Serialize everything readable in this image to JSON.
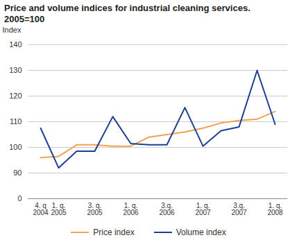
{
  "chart_data": {
    "type": "line",
    "title": "Price and volume indices for industrial cleaning services.",
    "subtitle": "2005=100",
    "y_label": "Index",
    "categories": [
      "4. q\n2004",
      "1. q.\n2005",
      null,
      "3. q.\n2005",
      null,
      "1. q.\n2006",
      null,
      "3.q.\n2006",
      null,
      "1. q.\n2007",
      null,
      "3.q.\n2007",
      null,
      "1. q.\n2008"
    ],
    "series": [
      {
        "name": "Price index",
        "color": "#f2a24e",
        "values": [
          96,
          96.5,
          101,
          101,
          100.5,
          100.5,
          104,
          105,
          106,
          107.5,
          109.5,
          110.5,
          111,
          114
        ]
      },
      {
        "name": "Volume index",
        "color": "#1c3f94",
        "values": [
          107.5,
          92,
          98.5,
          98.5,
          112,
          101.5,
          101,
          101,
          115.5,
          100.5,
          106.5,
          108,
          130,
          109
        ]
      }
    ],
    "ylim": [
      0,
      140
    ],
    "yticks": [
      0,
      90,
      100,
      110,
      120,
      130,
      140
    ],
    "grid": true,
    "legend": "bottom"
  }
}
